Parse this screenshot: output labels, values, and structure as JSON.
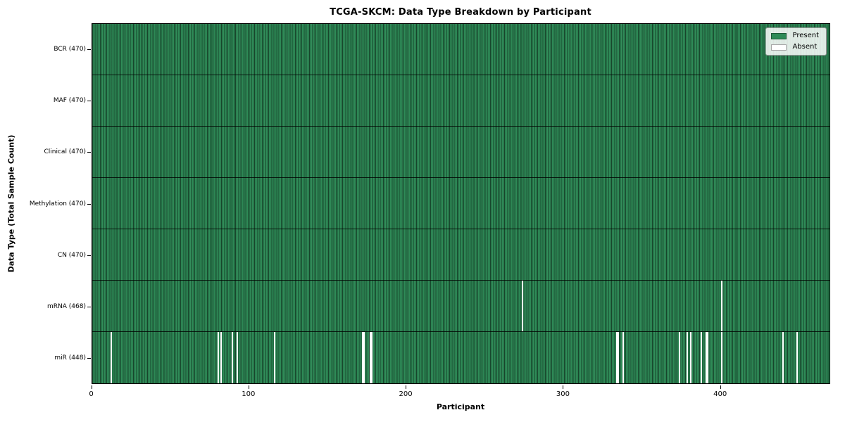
{
  "chart_data": {
    "type": "heatmap",
    "title": "TCGA-SKCM: Data Type Breakdown by Participant",
    "xlabel": "Participant",
    "ylabel": "Data Type (Total Sample Count)",
    "n_participants": 470,
    "x_range": [
      0,
      470
    ],
    "x_ticks": [
      0,
      100,
      200,
      300,
      400
    ],
    "grid": false,
    "legend_position": "upper right",
    "legend": [
      {
        "label": "Present",
        "color": "#2e8b57"
      },
      {
        "label": "Absent",
        "color": "#ffffff"
      }
    ],
    "colors": {
      "present": "#2e8b57",
      "absent": "#ffffff",
      "cell_edge": "#1a4d30"
    },
    "rows": [
      {
        "label": "BCR (470)",
        "data_type": "BCR",
        "present_count": 470,
        "absent_count": 0,
        "absent_participants": []
      },
      {
        "label": "MAF (470)",
        "data_type": "MAF",
        "present_count": 470,
        "absent_count": 0,
        "absent_participants": []
      },
      {
        "label": "Clinical (470)",
        "data_type": "Clinical",
        "present_count": 470,
        "absent_count": 0,
        "absent_participants": []
      },
      {
        "label": "Methylation (470)",
        "data_type": "Methylation",
        "present_count": 470,
        "absent_count": 0,
        "absent_participants": []
      },
      {
        "label": "CN (470)",
        "data_type": "CN",
        "present_count": 470,
        "absent_count": 0,
        "absent_participants": []
      },
      {
        "label": "mRNA (468)",
        "data_type": "mRNA",
        "present_count": 468,
        "absent_count": 2,
        "absent_participants": [
          274,
          401
        ]
      },
      {
        "label": "miR (448)",
        "data_type": "miR",
        "present_count": 448,
        "absent_count": 22,
        "absent_participants": [
          12,
          80,
          82,
          89,
          92,
          116,
          172,
          173,
          177,
          178,
          334,
          335,
          338,
          374,
          379,
          381,
          388,
          391,
          392,
          401,
          440,
          449
        ]
      }
    ]
  }
}
